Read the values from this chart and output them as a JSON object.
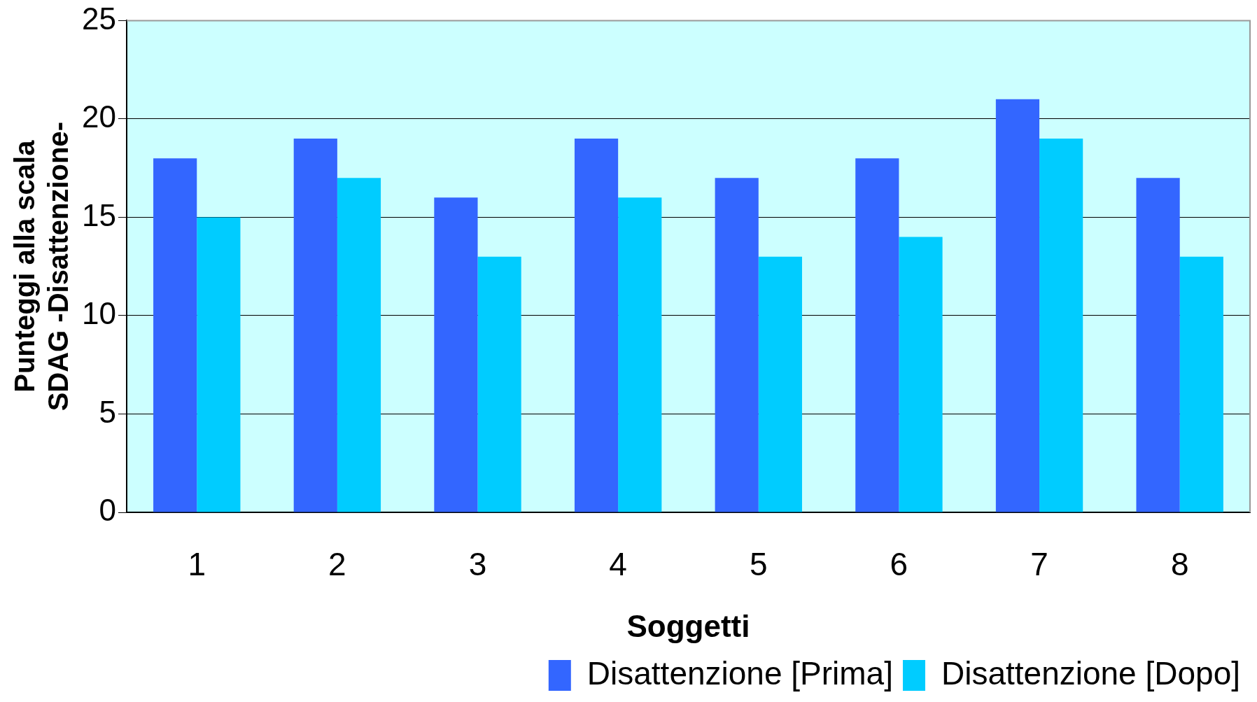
{
  "chart_data": {
    "type": "bar",
    "xlabel": "Soggetti",
    "ylabel": "Punteggi alla scala SDAG -Disattenzione-",
    "categories": [
      "1",
      "2",
      "3",
      "4",
      "5",
      "6",
      "7",
      "8"
    ],
    "series": [
      {
        "name": "Disattenzione [Prima]",
        "color": "#3366ff",
        "values": [
          18,
          19,
          16,
          19,
          17,
          18,
          21,
          17
        ]
      },
      {
        "name": "Disattenzione [Dopo]",
        "color": "#00ccff",
        "values": [
          15,
          17,
          13,
          16,
          13,
          14,
          19,
          13
        ]
      }
    ],
    "ylim": [
      0,
      25
    ],
    "yticks": [
      0,
      5,
      10,
      15,
      20,
      25
    ],
    "grid": "y",
    "legend": "bottom right"
  }
}
